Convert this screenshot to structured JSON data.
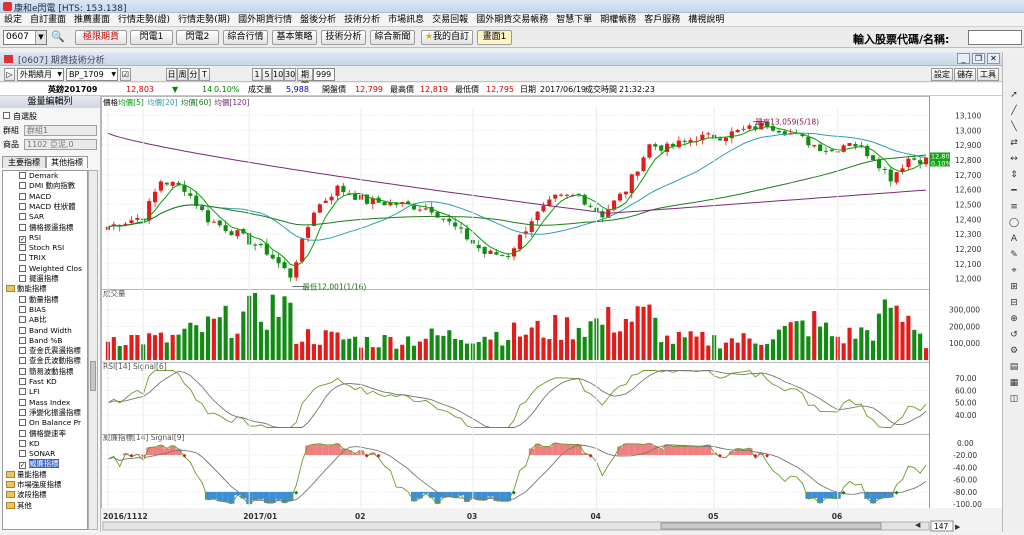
{
  "window": {
    "title": "康和e閃電 [HTS: 153.138]"
  },
  "menu": [
    "設定",
    "自訂畫面",
    "推薦畫面",
    "行情走勢(證)",
    "行情走勢(期)",
    "國外期貨行情",
    "盤後分析",
    "技術分析",
    "市場訊息",
    "交易回報",
    "國外期貨交易帳務",
    "智慧下單",
    "期權帳務",
    "客戶服務",
    "構視說明"
  ],
  "toolbar": {
    "code": "0607",
    "buttons": [
      "極限期貨",
      "閃電1",
      "閃電2",
      "綜合行情",
      "基本策略",
      "技術分析",
      "綜合新聞"
    ],
    "my_custom": "我的自訂",
    "screen1": "畫面1",
    "stock_label": "輸入股票代碼/名稱:"
  },
  "subwindow": {
    "title": "[0607] 期貨技術分析",
    "market": "外期績月",
    "symbol": "BP_1709",
    "periods": [
      "日",
      "周",
      "分",
      "T"
    ],
    "minutes": [
      "1",
      "5",
      "10",
      "30"
    ],
    "period_label": "期間",
    "period_value": "999",
    "right_buttons": [
      "設定",
      "儲存",
      "工具"
    ]
  },
  "quote": {
    "name": "英鎊201709",
    "price": "12,803",
    "arrow": "▼",
    "change": "14",
    "pct": "0.10%",
    "vol_label": "成交量",
    "vol": "5,988",
    "open_label": "開盤價",
    "open": "12,799",
    "high_label": "最高價",
    "high": "12,819",
    "low_label": "最低價",
    "low": "12,795",
    "date_label": "日期",
    "date": "2017/06/19",
    "time_label": "成交時間",
    "time": "21:32:23"
  },
  "left_panel": {
    "header": "盤量編輯列",
    "self_select": "自選股",
    "group_label": "群組",
    "group_value": "群組1",
    "product_label": "商品",
    "product_value": "1102 亞泥,0",
    "tabs": [
      "主要指標",
      "其他指標"
    ],
    "tree": [
      {
        "t": "Demark",
        "k": "cb"
      },
      {
        "t": "DMI 動向指數",
        "k": "cb"
      },
      {
        "t": "MACD",
        "k": "cb"
      },
      {
        "t": "MACD 柱狀體",
        "k": "cb"
      },
      {
        "t": "SAR",
        "k": "cb"
      },
      {
        "t": "價格振盪指標",
        "k": "cb"
      },
      {
        "t": "RSI",
        "k": "cb",
        "c": true
      },
      {
        "t": "Stoch RSI",
        "k": "cb"
      },
      {
        "t": "TRIX",
        "k": "cb"
      },
      {
        "t": "Weighted Clos",
        "k": "cb"
      },
      {
        "t": "擺盪指標",
        "k": "cb"
      },
      {
        "t": "動能指標",
        "k": "fold"
      },
      {
        "t": "動量指標",
        "k": "cb"
      },
      {
        "t": "BIAS",
        "k": "cb"
      },
      {
        "t": "AB比",
        "k": "cb"
      },
      {
        "t": "Band Width",
        "k": "cb"
      },
      {
        "t": "Band %B",
        "k": "cb"
      },
      {
        "t": "查金氏震盪指標",
        "k": "cb"
      },
      {
        "t": "查金氏波動指標",
        "k": "cb"
      },
      {
        "t": "簡易波動指標",
        "k": "cb"
      },
      {
        "t": "Fast KD",
        "k": "cb"
      },
      {
        "t": "LFI",
        "k": "cb"
      },
      {
        "t": "Mass Index",
        "k": "cb"
      },
      {
        "t": "淨變化振盪指標",
        "k": "cb"
      },
      {
        "t": "On Balance Pr",
        "k": "cb"
      },
      {
        "t": "價格變速率",
        "k": "cb"
      },
      {
        "t": "KD",
        "k": "cb"
      },
      {
        "t": "SONAR",
        "k": "cb"
      },
      {
        "t": "威廉指標",
        "k": "cb",
        "c": true,
        "hl": true
      },
      {
        "t": "量能指標",
        "k": "fold"
      },
      {
        "t": "市場強度指標",
        "k": "fold"
      },
      {
        "t": "波段指標",
        "k": "fold"
      },
      {
        "t": "其他",
        "k": "fold"
      }
    ]
  },
  "chart_data": {
    "type": "candlestick",
    "price_legend": [
      {
        "text": "價格",
        "color": "#000000"
      },
      {
        "text": "均價[5]",
        "color": "#00a000"
      },
      {
        "text": "均價[20]",
        "color": "#2f9fb0"
      },
      {
        "text": "均價[60]",
        "color": "#1d7d1d"
      },
      {
        "text": "均價[120]",
        "color": "#7a2a7a"
      }
    ],
    "price_ticks": [
      "13,100",
      "13,000",
      "12,900",
      "12,800",
      "12,700",
      "12,600",
      "12,500",
      "12,400",
      "12,300",
      "12,200",
      "12,100",
      "12,000"
    ],
    "price_ylim": [
      11950,
      13150
    ],
    "high_note": "最高13,059(5/18)",
    "low_note": "最低12,001(1/16)",
    "last_price": "12,803",
    "last_change": "0.10%",
    "volume_label": "成交量",
    "volume_ticks": [
      "300,000",
      "200,000",
      "100,000"
    ],
    "volume_ylim": [
      0,
      380000
    ],
    "rsi_label": "RSI[14] Signal[6]",
    "rsi_ticks": [
      "70.00",
      "60.00",
      "50.00",
      "40.00"
    ],
    "rsi_ylim": [
      28,
      78
    ],
    "wr_label": "威廉指標[14] Signal[9]",
    "wr_ticks": [
      "-20.00",
      "-40.00",
      "-60.00",
      "-80.00",
      "-100.00"
    ],
    "wr_ylim": [
      -103,
      3
    ],
    "wr_zero": "0.00",
    "x_labels": [
      {
        "text": "2016/11",
        "i": 0
      },
      {
        "text": "12",
        "i": 6
      },
      {
        "text": "2017/01",
        "i": 24
      },
      {
        "text": "02",
        "i": 43
      },
      {
        "text": "03",
        "i": 62
      },
      {
        "text": "04",
        "i": 83
      },
      {
        "text": "05",
        "i": 103
      },
      {
        "text": "06",
        "i": 124
      }
    ],
    "zoom": "147",
    "close_anchors": [
      [
        0,
        12350
      ],
      [
        6,
        12420
      ],
      [
        9,
        12660
      ],
      [
        13,
        12610
      ],
      [
        17,
        12400
      ],
      [
        22,
        12300
      ],
      [
        27,
        12180
      ],
      [
        31,
        12020
      ],
      [
        35,
        12460
      ],
      [
        39,
        12610
      ],
      [
        44,
        12520
      ],
      [
        50,
        12500
      ],
      [
        55,
        12470
      ],
      [
        60,
        12310
      ],
      [
        64,
        12170
      ],
      [
        68,
        12160
      ],
      [
        72,
        12400
      ],
      [
        76,
        12540
      ],
      [
        80,
        12560
      ],
      [
        84,
        12430
      ],
      [
        88,
        12600
      ],
      [
        92,
        12900
      ],
      [
        95,
        12880
      ],
      [
        100,
        12950
      ],
      [
        104,
        12960
      ],
      [
        108,
        13000
      ],
      [
        112,
        13040
      ],
      [
        116,
        12980
      ],
      [
        120,
        12900
      ],
      [
        123,
        12860
      ],
      [
        126,
        12930
      ],
      [
        130,
        12820
      ],
      [
        133,
        12680
      ],
      [
        136,
        12810
      ],
      [
        139,
        12800
      ]
    ],
    "vol_anchors": [
      [
        0,
        140000
      ],
      [
        10,
        120000
      ],
      [
        31,
        340000
      ],
      [
        32,
        150000
      ],
      [
        45,
        110000
      ],
      [
        56,
        140000
      ],
      [
        70,
        160000
      ],
      [
        92,
        260000
      ],
      [
        95,
        120000
      ],
      [
        110,
        120000
      ],
      [
        120,
        220000
      ],
      [
        124,
        130000
      ],
      [
        130,
        180000
      ],
      [
        133,
        300000
      ],
      [
        134,
        250000
      ],
      [
        137,
        230000
      ],
      [
        139,
        100000
      ]
    ]
  },
  "right_tools": [
    "➚",
    "╱",
    "╲",
    "⇄",
    "↔",
    "⇕",
    "━",
    "≡",
    "◯",
    "A",
    "✎",
    "⌖",
    "⊞",
    "⊟",
    "⊕",
    "↺",
    "⚙",
    "▤",
    "▦",
    "◫"
  ]
}
